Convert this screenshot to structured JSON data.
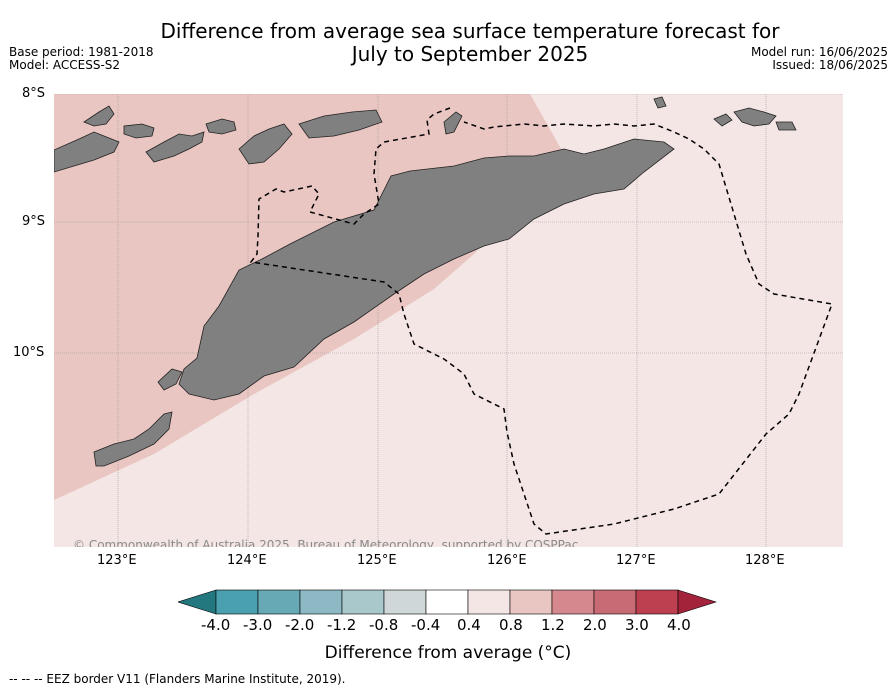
{
  "header": {
    "title_line1": "Difference from average sea surface temperature forecast for",
    "title_line2": "July to September 2025",
    "base_period": "Base period: 1981-2018",
    "model": "Model: ACCESS-S2",
    "model_run": "Model run: 16/06/2025",
    "issued": "Issued: 18/06/2025"
  },
  "map": {
    "lat_labels": [
      "8°S",
      "9°S",
      "10°S"
    ],
    "lon_labels": [
      "123°E",
      "124°E",
      "125°E",
      "126°E",
      "127°E",
      "128°E"
    ],
    "copyright": "© Commonwealth of Australia 2025, Bureau of Meteorology, supported by COSPPac",
    "land_color": "#808080",
    "anomaly_0_4_to_0_8_color": "#f4e6e4",
    "anomaly_0_8_to_1_2_color": "#e9c6c1"
  },
  "colorbar": {
    "tick_labels": [
      "-4.0",
      "-3.0",
      "-2.0",
      "-1.2",
      "-0.8",
      "-0.4",
      "0.4",
      "0.8",
      "1.2",
      "2.0",
      "3.0",
      "4.0"
    ],
    "colors": [
      "#23787f",
      "#4aa0ae",
      "#68a9b6",
      "#8cb9c4",
      "#a9c8cb",
      "#cfd7d8",
      "#ffffff",
      "#f4e6e4",
      "#e9c6c1",
      "#d6888f",
      "#c96b75",
      "#bc4050",
      "#a3233b"
    ],
    "title": "Difference from average (°C)"
  },
  "footer": {
    "eez_legend": "--  --  -- EEZ border V11 (Flanders Marine Institute, 2019)."
  }
}
